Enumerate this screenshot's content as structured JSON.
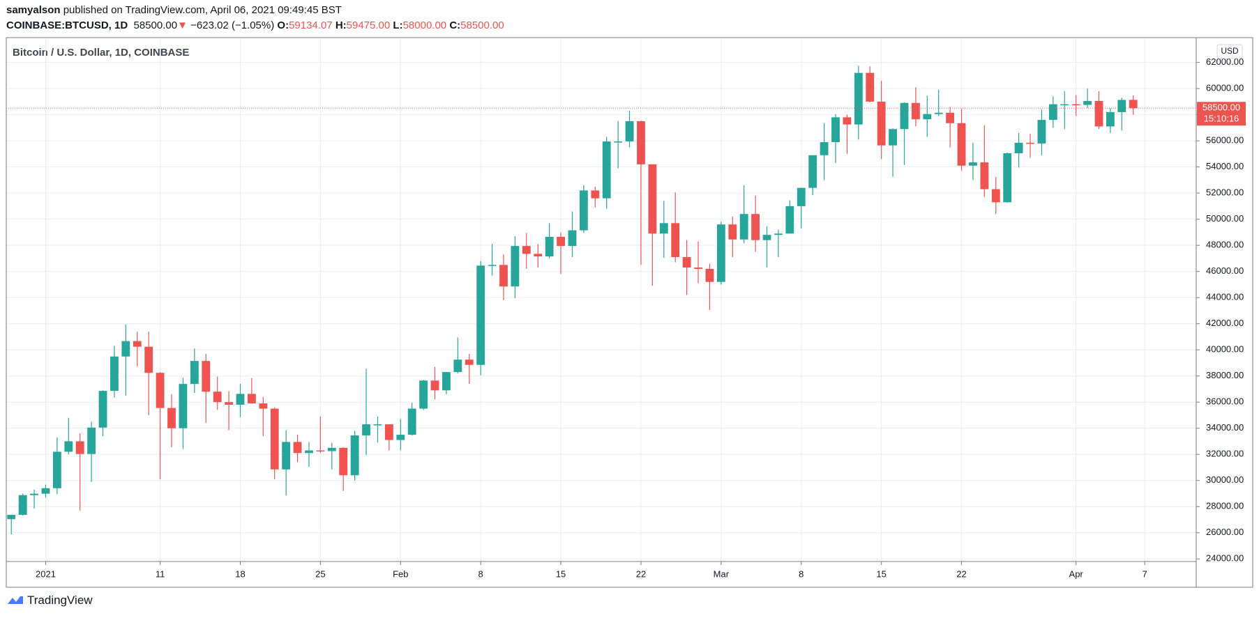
{
  "header": {
    "author": "samyalson",
    "published": "published on TradingView.com, April 06, 2021 09:49:45 BST",
    "symbol": "COINBASE:BTCUSD, 1D",
    "last": "58500.00",
    "change": "−623.02 (−1.05%)",
    "open_label": "O:",
    "open": "59134.07",
    "high_label": "H:",
    "high": "59475.00",
    "low_label": "L:",
    "low": "58000.00",
    "close_label": "C:",
    "close": "58500.00"
  },
  "brand": "TradingView",
  "chart_data": {
    "type": "candlestick",
    "title": "Bitcoin / U.S. Dollar, 1D, COINBASE",
    "currency": "USD",
    "up_color": "#26a69a",
    "down_color": "#ef5350",
    "grid": true,
    "x": [
      -3,
      -2,
      -1,
      0,
      1,
      2,
      3,
      4,
      5,
      6,
      7,
      8,
      9,
      10,
      11,
      12,
      13,
      14,
      15,
      16,
      17,
      18,
      19,
      20,
      21,
      22,
      23,
      24,
      25,
      26,
      27,
      28,
      29,
      30,
      31,
      32,
      33,
      34,
      35,
      36,
      37,
      38,
      39,
      40,
      41,
      42,
      43,
      44,
      45,
      46,
      47,
      48,
      49,
      50,
      51,
      52,
      53,
      54,
      55,
      56,
      57,
      58,
      59,
      60,
      61,
      62,
      63,
      64,
      65,
      66,
      67,
      68,
      69,
      70,
      71,
      72,
      73,
      74,
      75,
      76,
      77,
      78,
      79,
      80,
      81,
      82,
      83,
      84,
      85,
      86,
      87,
      88,
      89,
      90,
      91,
      92,
      93,
      94,
      95
    ],
    "open": [
      27040,
      27370,
      28880,
      28990,
      29410,
      32200,
      33000,
      32030,
      34050,
      36860,
      39490,
      40670,
      40240,
      38240,
      35550,
      34000,
      37390,
      39150,
      36800,
      36000,
      35800,
      36630,
      35900,
      35500,
      30850,
      32950,
      32100,
      32300,
      32250,
      32500,
      30400,
      33450,
      34300,
      34300,
      33100,
      33500,
      35500,
      37650,
      36900,
      38300,
      39250,
      38850,
      46450,
      46500,
      44850,
      47950,
      47350,
      47150,
      48650,
      47950,
      49150,
      52200,
      51600,
      55950,
      55950,
      57500,
      54200,
      48900,
      49700,
      47100,
      46300,
      46200,
      45200,
      49600,
      48450,
      50400,
      48400,
      48800,
      48900,
      51000,
      52400,
      54900,
      55900,
      57800,
      57250,
      61200,
      59000,
      55650,
      56900,
      58900,
      57650,
      58050,
      58150,
      57350,
      54100,
      54350,
      52300,
      51300,
      55050,
      55850,
      55800,
      57600,
      58800,
      58800,
      58750,
      59050,
      57100,
      58200,
      59134.07
    ],
    "high": [
      27370,
      28990,
      29300,
      29680,
      33300,
      34800,
      33600,
      34500,
      36900,
      40300,
      41950,
      41380,
      41400,
      38300,
      36600,
      37850,
      40100,
      39700,
      37950,
      36850,
      37400,
      37850,
      36400,
      35600,
      33850,
      33500,
      32950,
      34900,
      32900,
      32550,
      33800,
      38550,
      34900,
      34300,
      34700,
      35950,
      37700,
      38700,
      38300,
      40950,
      39700,
      46800,
      48100,
      47300,
      48700,
      48950,
      48100,
      49700,
      49000,
      50600,
      52600,
      52500,
      56300,
      57500,
      58300,
      57550,
      54200,
      51400,
      52050,
      48400,
      48300,
      46600,
      49800,
      50200,
      52600,
      51800,
      49450,
      49200,
      51450,
      52400,
      54900,
      57350,
      58050,
      58000,
      61750,
      61700,
      60600,
      56950,
      58950,
      60100,
      59450,
      59900,
      58600,
      58450,
      55850,
      57200,
      53250,
      55100,
      56600,
      56550,
      58400,
      59400,
      59800,
      59500,
      60000,
      59800,
      58500,
      59300,
      59475
    ],
    "low": [
      25880,
      27320,
      27850,
      28700,
      28950,
      32000,
      27700,
      29900,
      33400,
      36350,
      36500,
      38730,
      35000,
      30100,
      32550,
      32400,
      36700,
      34400,
      35400,
      33850,
      34850,
      35900,
      33400,
      30100,
      28850,
      31400,
      31050,
      32100,
      30850,
      29200,
      30000,
      31950,
      32900,
      32300,
      32300,
      33450,
      35400,
      36200,
      36600,
      38200,
      37400,
      38050,
      45700,
      43800,
      43950,
      46200,
      46300,
      47000,
      45800,
      47100,
      48950,
      50900,
      50800,
      53900,
      55500,
      46500,
      44900,
      47050,
      46700,
      44200,
      45100,
      43050,
      45000,
      47100,
      48150,
      47500,
      46300,
      47100,
      48900,
      49300,
      51850,
      53000,
      54300,
      55000,
      56100,
      58950,
      54600,
      53250,
      54150,
      57100,
      56300,
      57900,
      55500,
      53700,
      53000,
      51700,
      50400,
      51250,
      53950,
      54700,
      54900,
      57000,
      56900,
      57900,
      58500,
      56900,
      56600,
      56800,
      58000
    ],
    "close": [
      27370,
      28880,
      28990,
      29410,
      32200,
      33000,
      32030,
      34050,
      36860,
      39490,
      40670,
      40240,
      38240,
      35550,
      34000,
      37390,
      39150,
      36800,
      36000,
      35800,
      36630,
      35900,
      35500,
      30850,
      32950,
      32100,
      32300,
      32250,
      32500,
      30400,
      33450,
      34300,
      34300,
      33100,
      33500,
      35500,
      37650,
      36900,
      38300,
      39250,
      38850,
      46450,
      46500,
      44850,
      47950,
      47350,
      47150,
      48650,
      47950,
      49150,
      52200,
      51600,
      55950,
      55950,
      57500,
      54200,
      48900,
      49700,
      47100,
      46300,
      46200,
      45200,
      49600,
      48450,
      50400,
      48400,
      48800,
      48900,
      51000,
      52400,
      54900,
      55900,
      57800,
      57250,
      61200,
      59000,
      55650,
      56900,
      58900,
      57650,
      58050,
      58150,
      57350,
      54100,
      54350,
      52300,
      51300,
      55050,
      55850,
      55800,
      57600,
      58800,
      58800,
      58750,
      59050,
      57100,
      58200,
      59130,
      58500
    ],
    "xlim": [
      -3.44,
      100.5
    ],
    "xticks": [
      {
        "value": 0,
        "label": "2021"
      },
      {
        "value": 10,
        "label": "11"
      },
      {
        "value": 17,
        "label": "18"
      },
      {
        "value": 24,
        "label": "25"
      },
      {
        "value": 31,
        "label": "Feb"
      },
      {
        "value": 38,
        "label": "8"
      },
      {
        "value": 45,
        "label": "15"
      },
      {
        "value": 52,
        "label": "22"
      },
      {
        "value": 59,
        "label": "Mar"
      },
      {
        "value": 66,
        "label": "8"
      },
      {
        "value": 73,
        "label": "15"
      },
      {
        "value": 80,
        "label": "22"
      },
      {
        "value": 90,
        "label": "Apr"
      },
      {
        "value": 96,
        "label": "7"
      }
    ],
    "ylim": [
      23800,
      63900
    ],
    "yticks": [
      {
        "value": 24000,
        "label": "24000.00"
      },
      {
        "value": 26000,
        "label": "26000.00"
      },
      {
        "value": 28000,
        "label": "28000.00"
      },
      {
        "value": 30000,
        "label": "30000.00"
      },
      {
        "value": 32000,
        "label": "32000.00"
      },
      {
        "value": 34000,
        "label": "34000.00"
      },
      {
        "value": 36000,
        "label": "36000.00"
      },
      {
        "value": 38000,
        "label": "38000.00"
      },
      {
        "value": 40000,
        "label": "40000.00"
      },
      {
        "value": 42000,
        "label": "42000.00"
      },
      {
        "value": 44000,
        "label": "44000.00"
      },
      {
        "value": 46000,
        "label": "46000.00"
      },
      {
        "value": 48000,
        "label": "48000.00"
      },
      {
        "value": 50000,
        "label": "50000.00"
      },
      {
        "value": 52000,
        "label": "52000.00"
      },
      {
        "value": 54000,
        "label": "54000.00"
      },
      {
        "value": 56000,
        "label": "56000.00"
      },
      {
        "value": 58000,
        "label": "58000.00"
      },
      {
        "value": 60000,
        "label": "60000.00"
      },
      {
        "value": 62000,
        "label": "62000.00"
      }
    ],
    "last_price": {
      "value": 58500,
      "label": "58500.00"
    },
    "countdown": "15:10:16"
  }
}
